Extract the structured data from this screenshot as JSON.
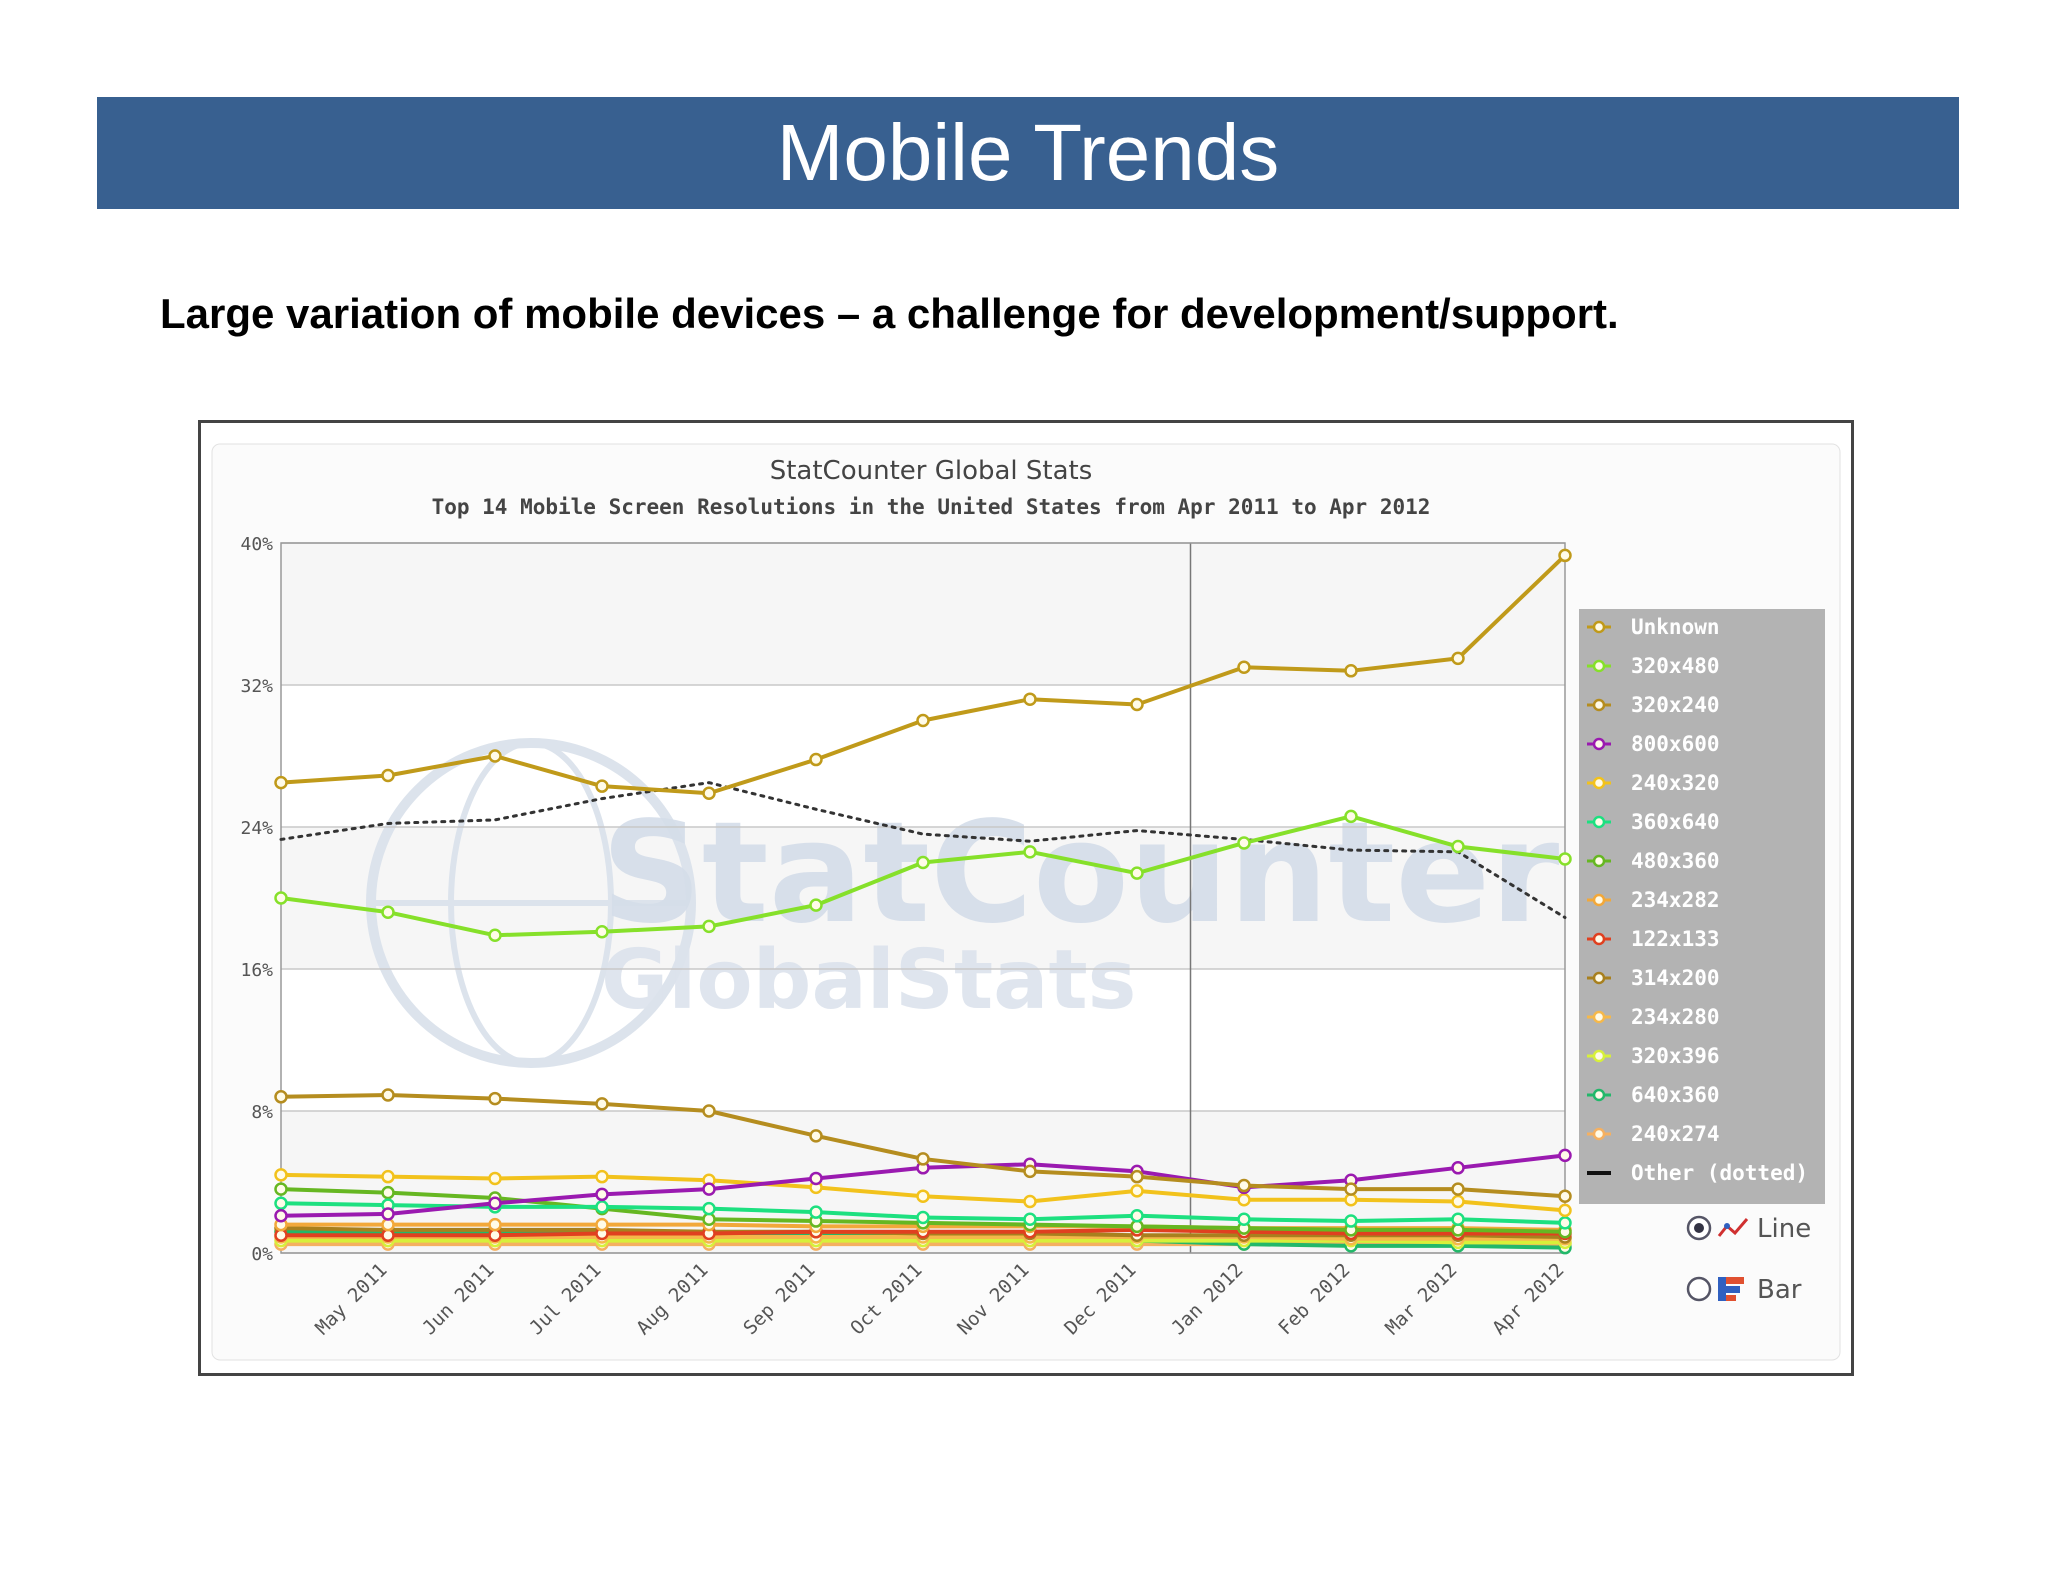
{
  "slide": {
    "title": "Mobile Trends",
    "subtitle": "Large variation of mobile devices – a challenge for development/support."
  },
  "chart_data": {
    "type": "line",
    "title": "StatCounter Global Stats",
    "subtitle": "Top 14 Mobile Screen Resolutions in the United States from Apr 2011 to Apr 2012",
    "watermark": "StatCounter GlobalStats",
    "categories": [
      "Apr 2011",
      "May 2011",
      "Jun 2011",
      "Jul 2011",
      "Aug 2011",
      "Sep 2011",
      "Oct 2011",
      "Nov 2011",
      "Dec 2011",
      "Jan 2012",
      "Feb 2012",
      "Mar 2012",
      "Apr 2012"
    ],
    "x_tick_labels": [
      "May 2011",
      "Jun 2011",
      "Jul 2011",
      "Aug 2011",
      "Sep 2011",
      "Oct 2011",
      "Nov 2011",
      "Dec 2011",
      "Jan 2012",
      "Feb 2012",
      "Mar 2012",
      "Apr 2012"
    ],
    "y_ticks": [
      "0%",
      "8%",
      "16%",
      "24%",
      "32%",
      "40%"
    ],
    "ylim": [
      0,
      40
    ],
    "grid": true,
    "legend_position": "right",
    "series": [
      {
        "name": "Unknown",
        "color": "#c09a1a",
        "values": [
          26.5,
          26.9,
          28.0,
          26.3,
          25.9,
          27.8,
          30.0,
          31.2,
          30.9,
          33.0,
          32.8,
          33.5,
          39.3
        ]
      },
      {
        "name": "320x480",
        "color": "#86e02a",
        "values": [
          20.0,
          19.2,
          17.9,
          18.1,
          18.4,
          19.6,
          22.0,
          22.6,
          21.4,
          23.1,
          24.6,
          22.9,
          22.2
        ]
      },
      {
        "name": "320x240",
        "color": "#b58d1f",
        "values": [
          8.8,
          8.9,
          8.7,
          8.4,
          8.0,
          6.6,
          5.3,
          4.6,
          4.3,
          3.8,
          3.6,
          3.6,
          3.2
        ]
      },
      {
        "name": "800x600",
        "color": "#9a1ab0",
        "values": [
          2.1,
          2.2,
          2.8,
          3.3,
          3.6,
          4.2,
          4.8,
          5.0,
          4.6,
          3.7,
          4.1,
          4.8,
          5.5
        ]
      },
      {
        "name": "240x320",
        "color": "#f2c21c",
        "values": [
          4.4,
          4.3,
          4.2,
          4.3,
          4.1,
          3.7,
          3.2,
          2.9,
          3.5,
          3.0,
          3.0,
          2.9,
          2.4
        ]
      },
      {
        "name": "360x640",
        "color": "#1de080",
        "values": [
          2.8,
          2.7,
          2.6,
          2.6,
          2.5,
          2.3,
          2.0,
          1.9,
          2.1,
          1.9,
          1.8,
          1.9,
          1.7
        ]
      },
      {
        "name": "480x360",
        "color": "#66b722",
        "values": [
          3.6,
          3.4,
          3.1,
          2.5,
          1.9,
          1.8,
          1.7,
          1.6,
          1.5,
          1.4,
          1.3,
          1.3,
          1.2
        ]
      },
      {
        "name": "234x282",
        "color": "#f2a83a",
        "values": [
          1.6,
          1.6,
          1.6,
          1.6,
          1.6,
          1.5,
          1.5,
          1.5,
          1.5,
          1.4,
          1.4,
          1.4,
          1.3
        ]
      },
      {
        "name": "122x133",
        "color": "#e04020",
        "values": [
          1.0,
          1.0,
          1.0,
          1.1,
          1.1,
          1.2,
          1.2,
          1.2,
          1.3,
          1.2,
          1.1,
          1.1,
          1.1
        ]
      },
      {
        "name": "314x200",
        "color": "#a8801e",
        "values": [
          1.4,
          1.3,
          1.3,
          1.3,
          1.2,
          1.2,
          1.1,
          1.1,
          1.0,
          1.0,
          1.0,
          1.0,
          0.9
        ]
      },
      {
        "name": "234x280",
        "color": "#f5b84a",
        "values": [
          0.9,
          0.9,
          0.9,
          0.9,
          0.9,
          0.9,
          0.9,
          0.9,
          0.9,
          0.9,
          0.8,
          0.8,
          0.8
        ]
      },
      {
        "name": "320x396",
        "color": "#d7f03a",
        "values": [
          0.7,
          0.7,
          0.7,
          0.7,
          0.7,
          0.7,
          0.7,
          0.7,
          0.7,
          0.7,
          0.7,
          0.6,
          0.6
        ]
      },
      {
        "name": "640x360",
        "color": "#22b86a",
        "values": [
          1.2,
          1.2,
          1.1,
          1.1,
          1.0,
          1.0,
          0.9,
          0.8,
          0.7,
          0.5,
          0.4,
          0.4,
          0.3
        ]
      },
      {
        "name": "240x274",
        "color": "#f5b060",
        "values": [
          0.5,
          0.5,
          0.5,
          0.5,
          0.5,
          0.5,
          0.5,
          0.5,
          0.5,
          0.5,
          0.5,
          0.5,
          0.5
        ]
      },
      {
        "name": "Other (dotted)",
        "color": "#333333",
        "dotted": true,
        "values": [
          23.3,
          24.2,
          24.4,
          25.6,
          26.5,
          25.0,
          23.6,
          23.2,
          23.8,
          23.3,
          22.7,
          22.6,
          18.9
        ]
      }
    ],
    "controls": {
      "line_label": "Line",
      "bar_label": "Bar",
      "selected": "Line"
    }
  }
}
